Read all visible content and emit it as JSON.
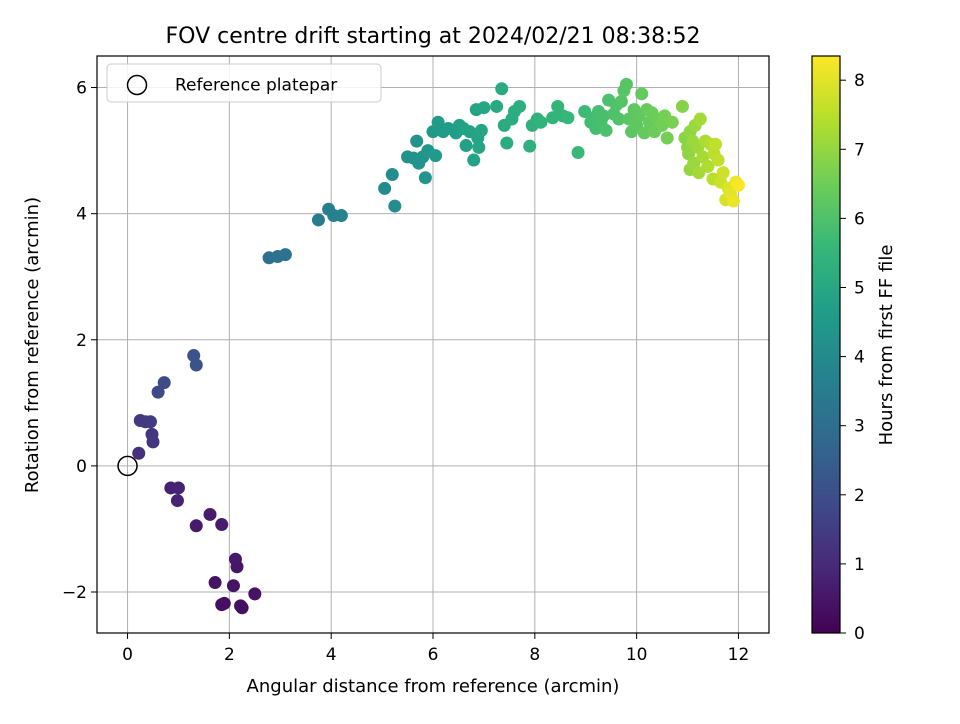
{
  "chart_data": {
    "type": "scatter",
    "title": "FOV centre drift starting at 2024/02/21 08:38:52",
    "xlabel": "Angular distance from reference (arcmin)",
    "ylabel": "Rotation from reference (arcmin)",
    "xlim": [
      -0.6,
      12.6
    ],
    "ylim": [
      -2.65,
      6.5
    ],
    "xticks": [
      0,
      2,
      4,
      6,
      8,
      10,
      12
    ],
    "xtick_labels": [
      "0",
      "2",
      "4",
      "6",
      "8",
      "10",
      "12"
    ],
    "yticks": [
      -2,
      0,
      2,
      4,
      6
    ],
    "ytick_labels": [
      "−2",
      "0",
      "2",
      "4",
      "6"
    ],
    "grid": true,
    "legend": {
      "position": "top-left",
      "entries": [
        {
          "label": "Reference platepar",
          "marker": "open-circle"
        }
      ]
    },
    "colorbar": {
      "label": "Hours from first FF file",
      "colormap": "viridis",
      "range": [
        0,
        8.35
      ],
      "ticks": [
        0,
        1,
        2,
        3,
        4,
        5,
        6,
        7,
        8
      ],
      "tick_labels": [
        "0",
        "1",
        "2",
        "3",
        "4",
        "5",
        "6",
        "7",
        "8"
      ]
    },
    "reference_point": {
      "x": 0,
      "y": 0
    },
    "points": [
      {
        "x": 1.85,
        "y": -2.2,
        "c": 0.3
      },
      {
        "x": 1.9,
        "y": -2.18,
        "c": 0.3
      },
      {
        "x": 2.25,
        "y": -2.25,
        "c": 0.35
      },
      {
        "x": 2.22,
        "y": -2.22,
        "c": 0.35
      },
      {
        "x": 2.5,
        "y": -2.03,
        "c": 0.4
      },
      {
        "x": 1.72,
        "y": -1.85,
        "c": 0.45
      },
      {
        "x": 2.08,
        "y": -1.9,
        "c": 0.45
      },
      {
        "x": 2.15,
        "y": -1.6,
        "c": 0.5
      },
      {
        "x": 2.12,
        "y": -1.48,
        "c": 0.55
      },
      {
        "x": 1.35,
        "y": -0.95,
        "c": 0.6
      },
      {
        "x": 1.62,
        "y": -0.77,
        "c": 0.65
      },
      {
        "x": 1.85,
        "y": -0.93,
        "c": 0.65
      },
      {
        "x": 0.85,
        "y": -0.35,
        "c": 0.75
      },
      {
        "x": 1.0,
        "y": -0.35,
        "c": 0.8
      },
      {
        "x": 0.98,
        "y": -0.55,
        "c": 0.8
      },
      {
        "x": 0.22,
        "y": 0.2,
        "c": 1.15
      },
      {
        "x": 0.5,
        "y": 0.38,
        "c": 1.25
      },
      {
        "x": 0.48,
        "y": 0.5,
        "c": 1.3
      },
      {
        "x": 0.25,
        "y": 0.72,
        "c": 1.35
      },
      {
        "x": 0.35,
        "y": 0.7,
        "c": 1.4
      },
      {
        "x": 0.45,
        "y": 0.7,
        "c": 1.45
      },
      {
        "x": 0.6,
        "y": 1.17,
        "c": 1.8
      },
      {
        "x": 0.72,
        "y": 1.32,
        "c": 1.9
      },
      {
        "x": 1.3,
        "y": 1.75,
        "c": 2.1
      },
      {
        "x": 1.35,
        "y": 1.6,
        "c": 2.15
      },
      {
        "x": 2.78,
        "y": 3.3,
        "c": 3.05
      },
      {
        "x": 2.95,
        "y": 3.32,
        "c": 3.1
      },
      {
        "x": 3.1,
        "y": 3.35,
        "c": 3.15
      },
      {
        "x": 3.75,
        "y": 3.9,
        "c": 3.5
      },
      {
        "x": 3.95,
        "y": 4.07,
        "c": 3.6
      },
      {
        "x": 4.05,
        "y": 3.97,
        "c": 3.65
      },
      {
        "x": 4.2,
        "y": 3.97,
        "c": 3.7
      },
      {
        "x": 5.05,
        "y": 4.4,
        "c": 4.0
      },
      {
        "x": 5.2,
        "y": 4.62,
        "c": 4.05
      },
      {
        "x": 5.25,
        "y": 4.12,
        "c": 4.05
      },
      {
        "x": 5.5,
        "y": 4.9,
        "c": 4.2
      },
      {
        "x": 5.62,
        "y": 4.88,
        "c": 4.25
      },
      {
        "x": 5.68,
        "y": 5.15,
        "c": 4.3
      },
      {
        "x": 5.72,
        "y": 4.8,
        "c": 4.3
      },
      {
        "x": 5.8,
        "y": 4.9,
        "c": 4.35
      },
      {
        "x": 5.85,
        "y": 4.57,
        "c": 4.35
      },
      {
        "x": 5.9,
        "y": 5.0,
        "c": 4.4
      },
      {
        "x": 6.0,
        "y": 5.3,
        "c": 4.45
      },
      {
        "x": 6.05,
        "y": 4.92,
        "c": 4.5
      },
      {
        "x": 6.1,
        "y": 5.45,
        "c": 4.55
      },
      {
        "x": 6.2,
        "y": 5.3,
        "c": 4.55
      },
      {
        "x": 6.3,
        "y": 5.35,
        "c": 4.6
      },
      {
        "x": 6.45,
        "y": 5.28,
        "c": 4.65
      },
      {
        "x": 6.52,
        "y": 5.4,
        "c": 4.7
      },
      {
        "x": 6.6,
        "y": 5.35,
        "c": 4.75
      },
      {
        "x": 6.65,
        "y": 5.08,
        "c": 4.75
      },
      {
        "x": 6.72,
        "y": 5.3,
        "c": 4.8
      },
      {
        "x": 6.8,
        "y": 4.85,
        "c": 4.8
      },
      {
        "x": 6.85,
        "y": 5.65,
        "c": 4.85
      },
      {
        "x": 6.88,
        "y": 5.2,
        "c": 4.85
      },
      {
        "x": 6.9,
        "y": 5.05,
        "c": 4.9
      },
      {
        "x": 6.95,
        "y": 5.32,
        "c": 4.9
      },
      {
        "x": 7.0,
        "y": 5.68,
        "c": 4.95
      },
      {
        "x": 7.25,
        "y": 5.7,
        "c": 5.05
      },
      {
        "x": 7.35,
        "y": 5.98,
        "c": 5.1
      },
      {
        "x": 7.4,
        "y": 5.4,
        "c": 5.1
      },
      {
        "x": 7.45,
        "y": 5.12,
        "c": 5.15
      },
      {
        "x": 7.55,
        "y": 5.5,
        "c": 5.15
      },
      {
        "x": 7.6,
        "y": 5.62,
        "c": 5.2
      },
      {
        "x": 7.7,
        "y": 5.7,
        "c": 5.25
      },
      {
        "x": 7.9,
        "y": 5.07,
        "c": 5.3
      },
      {
        "x": 7.95,
        "y": 5.4,
        "c": 5.3
      },
      {
        "x": 8.05,
        "y": 5.5,
        "c": 5.35
      },
      {
        "x": 8.12,
        "y": 5.45,
        "c": 5.4
      },
      {
        "x": 8.35,
        "y": 5.52,
        "c": 5.45
      },
      {
        "x": 8.45,
        "y": 5.7,
        "c": 5.5
      },
      {
        "x": 8.55,
        "y": 5.55,
        "c": 5.5
      },
      {
        "x": 8.65,
        "y": 5.52,
        "c": 5.55
      },
      {
        "x": 8.85,
        "y": 4.97,
        "c": 5.6
      },
      {
        "x": 8.98,
        "y": 5.62,
        "c": 5.7
      },
      {
        "x": 9.1,
        "y": 5.45,
        "c": 5.75
      },
      {
        "x": 9.15,
        "y": 5.52,
        "c": 5.8
      },
      {
        "x": 9.2,
        "y": 5.35,
        "c": 5.85
      },
      {
        "x": 9.25,
        "y": 5.62,
        "c": 5.85
      },
      {
        "x": 9.3,
        "y": 5.45,
        "c": 5.9
      },
      {
        "x": 9.35,
        "y": 5.55,
        "c": 5.9
      },
      {
        "x": 9.4,
        "y": 5.32,
        "c": 5.95
      },
      {
        "x": 9.45,
        "y": 5.8,
        "c": 5.95
      },
      {
        "x": 9.55,
        "y": 5.58,
        "c": 6.0
      },
      {
        "x": 9.6,
        "y": 5.72,
        "c": 6.05
      },
      {
        "x": 9.65,
        "y": 5.5,
        "c": 6.05
      },
      {
        "x": 9.7,
        "y": 5.78,
        "c": 6.1
      },
      {
        "x": 9.75,
        "y": 5.95,
        "c": 6.15
      },
      {
        "x": 9.8,
        "y": 6.05,
        "c": 6.15
      },
      {
        "x": 9.85,
        "y": 5.5,
        "c": 6.2
      },
      {
        "x": 9.9,
        "y": 5.3,
        "c": 6.2
      },
      {
        "x": 9.95,
        "y": 5.65,
        "c": 6.25
      },
      {
        "x": 10.0,
        "y": 5.4,
        "c": 6.25
      },
      {
        "x": 10.05,
        "y": 5.55,
        "c": 6.3
      },
      {
        "x": 10.1,
        "y": 5.9,
        "c": 6.35
      },
      {
        "x": 10.15,
        "y": 5.28,
        "c": 6.35
      },
      {
        "x": 10.2,
        "y": 5.65,
        "c": 6.4
      },
      {
        "x": 10.25,
        "y": 5.45,
        "c": 6.4
      },
      {
        "x": 10.3,
        "y": 5.6,
        "c": 6.45
      },
      {
        "x": 10.35,
        "y": 5.3,
        "c": 6.45
      },
      {
        "x": 10.4,
        "y": 5.5,
        "c": 6.5
      },
      {
        "x": 10.5,
        "y": 5.4,
        "c": 6.55
      },
      {
        "x": 10.55,
        "y": 5.55,
        "c": 6.6
      },
      {
        "x": 10.6,
        "y": 5.2,
        "c": 6.6
      },
      {
        "x": 10.7,
        "y": 5.45,
        "c": 6.65
      },
      {
        "x": 10.9,
        "y": 5.7,
        "c": 6.8
      },
      {
        "x": 10.95,
        "y": 5.2,
        "c": 6.85
      },
      {
        "x": 11.0,
        "y": 5.05,
        "c": 6.9
      },
      {
        "x": 11.02,
        "y": 4.95,
        "c": 6.95
      },
      {
        "x": 11.05,
        "y": 5.3,
        "c": 6.95
      },
      {
        "x": 11.05,
        "y": 4.7,
        "c": 7.0
      },
      {
        "x": 11.1,
        "y": 5.15,
        "c": 7.05
      },
      {
        "x": 11.12,
        "y": 4.8,
        "c": 7.1
      },
      {
        "x": 11.15,
        "y": 5.4,
        "c": 7.1
      },
      {
        "x": 11.2,
        "y": 5.05,
        "c": 7.15
      },
      {
        "x": 11.22,
        "y": 4.65,
        "c": 7.2
      },
      {
        "x": 11.25,
        "y": 5.5,
        "c": 7.2
      },
      {
        "x": 11.3,
        "y": 4.9,
        "c": 7.25
      },
      {
        "x": 11.35,
        "y": 5.15,
        "c": 7.3
      },
      {
        "x": 11.4,
        "y": 4.75,
        "c": 7.35
      },
      {
        "x": 11.45,
        "y": 5.1,
        "c": 7.4
      },
      {
        "x": 11.5,
        "y": 4.55,
        "c": 7.5
      },
      {
        "x": 11.52,
        "y": 4.95,
        "c": 7.5
      },
      {
        "x": 11.55,
        "y": 5.1,
        "c": 7.55
      },
      {
        "x": 11.6,
        "y": 4.85,
        "c": 7.6
      },
      {
        "x": 11.65,
        "y": 4.5,
        "c": 7.7
      },
      {
        "x": 11.7,
        "y": 4.65,
        "c": 7.75
      },
      {
        "x": 11.75,
        "y": 4.22,
        "c": 7.85
      },
      {
        "x": 11.8,
        "y": 4.4,
        "c": 7.9
      },
      {
        "x": 11.85,
        "y": 4.3,
        "c": 8.0
      },
      {
        "x": 11.9,
        "y": 4.2,
        "c": 8.1
      },
      {
        "x": 11.95,
        "y": 4.5,
        "c": 8.15
      },
      {
        "x": 12.0,
        "y": 4.45,
        "c": 8.3
      }
    ]
  }
}
